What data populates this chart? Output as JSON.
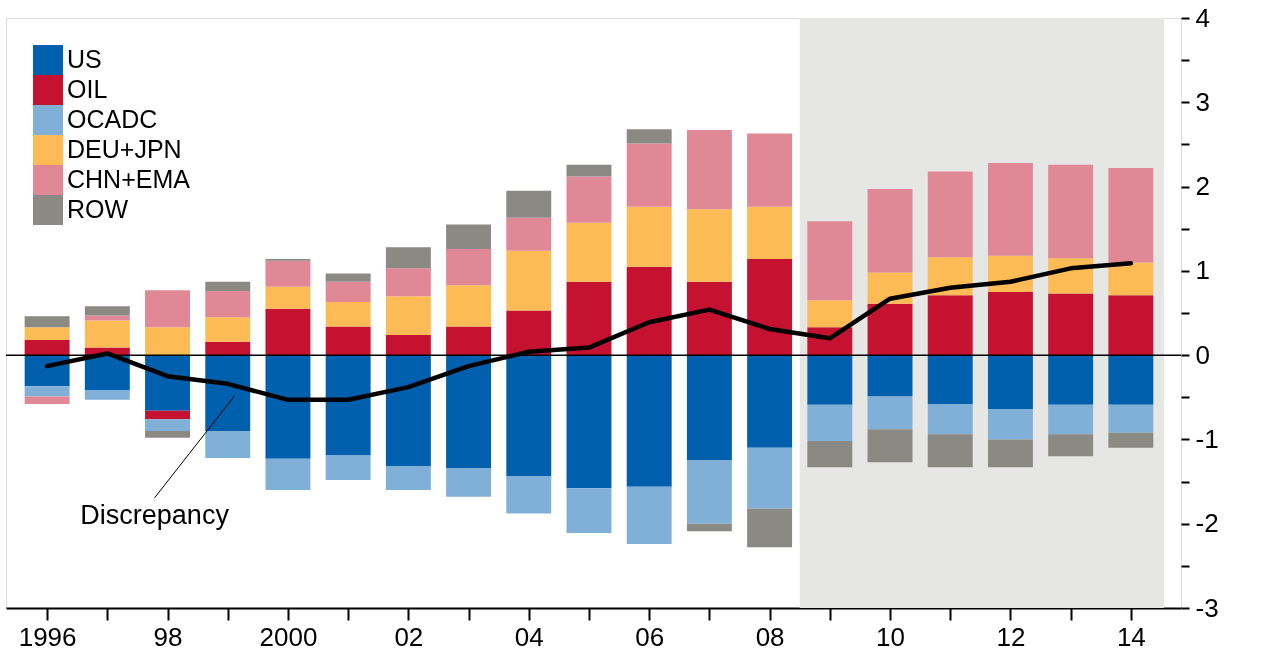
{
  "chart_data": {
    "type": "bar",
    "stacked": true,
    "x": [
      1996,
      1997,
      1998,
      1999,
      2000,
      2001,
      2002,
      2003,
      2004,
      2005,
      2006,
      2007,
      2008,
      2009,
      2010,
      2011,
      2012,
      2013,
      2014
    ],
    "series": [
      {
        "name": "US",
        "color": "#0060ad",
        "values": [
          -0.37,
          -0.42,
          -0.66,
          -0.9,
          -1.23,
          -1.19,
          -1.32,
          -1.34,
          -1.44,
          -1.58,
          -1.56,
          -1.25,
          -1.1,
          -0.59,
          -0.49,
          -0.58,
          -0.64,
          -0.59,
          -0.59
        ]
      },
      {
        "name": "OIL",
        "color": "#c41230",
        "values": [
          0.18,
          0.09,
          -0.1,
          0.16,
          0.55,
          0.34,
          0.24,
          0.34,
          0.53,
          0.87,
          1.05,
          0.87,
          1.14,
          0.33,
          0.61,
          0.71,
          0.75,
          0.73,
          0.71
        ]
      },
      {
        "name": "OCADC",
        "color": "#80b0d8",
        "values": [
          -0.12,
          -0.11,
          -0.14,
          -0.32,
          -0.37,
          -0.29,
          -0.28,
          -0.34,
          -0.44,
          -0.53,
          -0.68,
          -0.75,
          -0.72,
          -0.43,
          -0.39,
          -0.36,
          -0.36,
          -0.35,
          -0.33
        ]
      },
      {
        "name": "DEU+JPN",
        "color": "#fdbb55",
        "values": [
          0.15,
          0.32,
          0.33,
          0.29,
          0.26,
          0.29,
          0.46,
          0.49,
          0.71,
          0.7,
          0.71,
          0.86,
          0.62,
          0.32,
          0.37,
          0.45,
          0.43,
          0.42,
          0.39
        ]
      },
      {
        "name": "CHN+EMA",
        "color": "#e08896",
        "values": [
          -0.09,
          0.06,
          0.44,
          0.31,
          0.31,
          0.24,
          0.33,
          0.43,
          0.39,
          0.55,
          0.75,
          0.94,
          0.87,
          0.94,
          0.99,
          1.02,
          1.1,
          1.11,
          1.12
        ]
      },
      {
        "name": "ROW",
        "color": "#8a8983",
        "values": [
          0.13,
          0.11,
          -0.08,
          0.11,
          0.02,
          0.1,
          0.25,
          0.29,
          0.32,
          0.14,
          0.17,
          -0.09,
          -0.46,
          -0.31,
          -0.39,
          -0.39,
          -0.33,
          -0.26,
          -0.18
        ]
      },
      {
        "name": "Discrepancy",
        "type": "line",
        "color": "#000000",
        "values": [
          -0.13,
          0.02,
          -0.25,
          -0.34,
          -0.53,
          -0.53,
          -0.38,
          -0.13,
          0.04,
          0.09,
          0.39,
          0.54,
          0.31,
          0.2,
          0.67,
          0.8,
          0.87,
          1.03,
          1.09
        ]
      }
    ],
    "xlim": [
      1995.4,
      2014.75
    ],
    "xticks": [
      1996,
      {
        "value": 1997,
        "label": null
      },
      {
        "value": 1998,
        "label": "98"
      },
      {
        "value": 1999,
        "label": null
      },
      2000,
      {
        "value": 2001,
        "label": null
      },
      {
        "value": 2002,
        "label": "02"
      },
      {
        "value": 2003,
        "label": null
      },
      {
        "value": 2004,
        "label": "04"
      },
      {
        "value": 2005,
        "label": null
      },
      {
        "value": 2006,
        "label": "06"
      },
      {
        "value": 2007,
        "label": null
      },
      {
        "value": 2008,
        "label": "08"
      },
      {
        "value": 2009,
        "label": null
      },
      {
        "value": 2010,
        "label": "10"
      },
      {
        "value": 2011,
        "label": null
      },
      {
        "value": 2012,
        "label": "12"
      },
      {
        "value": 2013,
        "label": null
      },
      {
        "value": 2014,
        "label": "14"
      }
    ],
    "ylim": [
      -3,
      4
    ],
    "yticks": [
      -3,
      {
        "value": -2.5,
        "label": null
      },
      -2,
      {
        "value": -1.5,
        "label": null
      },
      -1,
      {
        "value": -0.5,
        "label": null
      },
      0,
      {
        "value": 0.5,
        "label": null
      },
      1,
      {
        "value": 1.5,
        "label": null
      },
      2,
      {
        "value": 2.5,
        "label": null
      },
      3,
      {
        "value": 3.5,
        "label": null
      },
      4
    ],
    "bands": [
      {
        "axis": "x",
        "from": 2008.5,
        "to": 2014.55,
        "color": "#e6e6e5"
      }
    ],
    "ref_lines": [
      {
        "axis": "y",
        "value": 0,
        "color": "#000000"
      }
    ],
    "legend": "top left",
    "grid": false,
    "line_style": "solid",
    "marker": "none"
  }
}
